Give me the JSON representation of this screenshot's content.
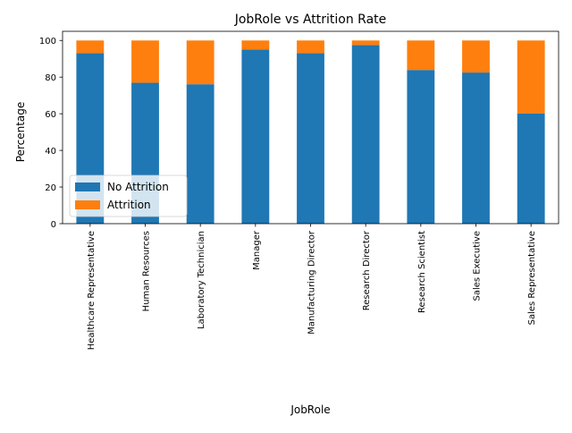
{
  "chart_data": {
    "type": "bar",
    "stacked": true,
    "title": "JobRole vs Attrition Rate",
    "xlabel": "JobRole",
    "ylabel": "Percentage",
    "ylim": [
      0,
      105
    ],
    "yticks": [
      0,
      20,
      40,
      60,
      80,
      100
    ],
    "grid": false,
    "legend_position": "lower-left",
    "categories": [
      "Healthcare Representative",
      "Human Resources",
      "Laboratory Technician",
      "Manager",
      "Manufacturing Director",
      "Research Director",
      "Research Scientist",
      "Sales Executive",
      "Sales Representative"
    ],
    "series": [
      {
        "name": "No Attrition",
        "color": "#1f77b4",
        "values": [
          93.1,
          76.9,
          76.1,
          95.1,
          93.1,
          97.5,
          83.9,
          82.5,
          60.2
        ]
      },
      {
        "name": "Attrition",
        "color": "#ff7f0e",
        "values": [
          6.9,
          23.1,
          23.9,
          4.9,
          6.9,
          2.5,
          16.1,
          17.5,
          39.8
        ]
      }
    ]
  }
}
